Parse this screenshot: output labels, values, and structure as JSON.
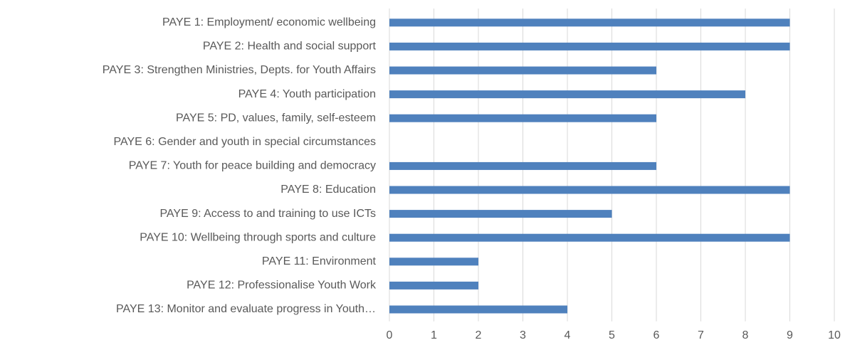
{
  "chart_data": {
    "type": "barh",
    "categories": [
      "PAYE 1: Employment/ economic wellbeing",
      "PAYE 2: Health and social support",
      "PAYE 3: Strengthen Ministries, Depts. for Youth Affairs",
      "PAYE 4: Youth participation",
      "PAYE 5: PD, values, family, self-esteem",
      "PAYE 6: Gender and youth in special circumstances",
      "PAYE 7: Youth for peace building and democracy",
      "PAYE 8: Education",
      "PAYE 9: Access to and training to use ICTs",
      "PAYE 10: Wellbeing through sports and culture",
      "PAYE 11: Environment",
      "PAYE 12: Professionalise Youth Work",
      "PAYE 13: Monitor and evaluate progress in Youth…"
    ],
    "values": [
      9,
      9,
      6,
      8,
      6,
      0,
      6,
      9,
      5,
      9,
      2,
      2,
      4
    ],
    "color": "#4f81bd",
    "xlim": [
      0,
      10
    ],
    "xticks": [
      0,
      1,
      2,
      3,
      4,
      5,
      6,
      7,
      8,
      9,
      10
    ],
    "grid": true
  }
}
